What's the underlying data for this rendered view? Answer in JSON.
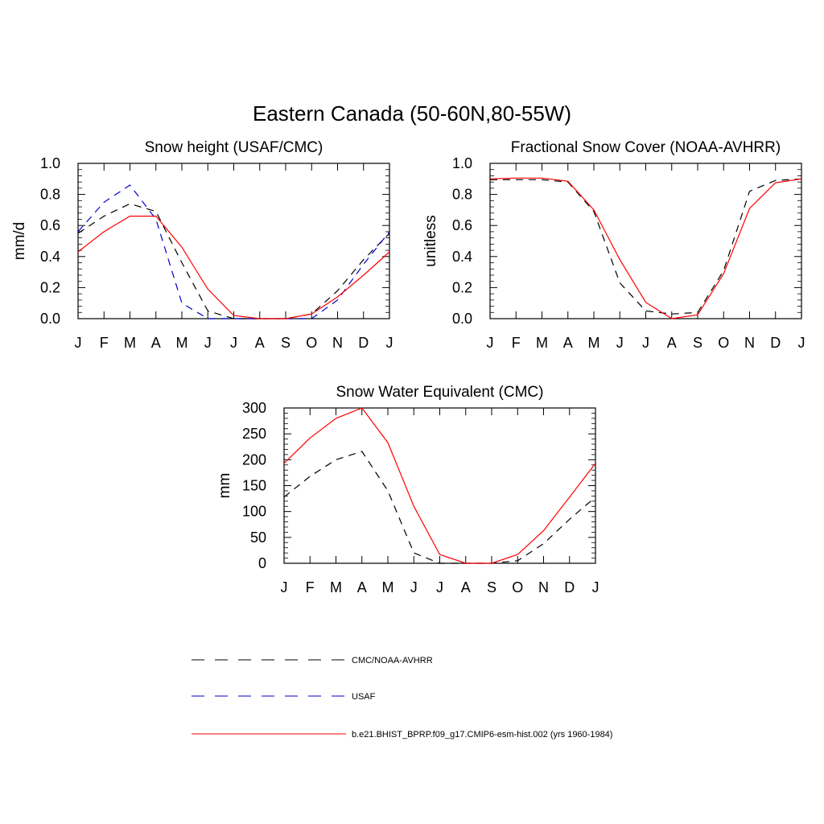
{
  "title": "Eastern Canada (50-60N,80-55W)",
  "colors": {
    "obs": "#000000",
    "usaf": "#0000cc",
    "model": "#ff0000"
  },
  "legend": [
    {
      "label": "CMC/NOAA-AVHRR",
      "color": "#000000",
      "dash": true
    },
    {
      "label": "USAF",
      "color": "#0000cc",
      "dash": true
    },
    {
      "label": "b.e21.BHIST_BPRP.f09_g17.CMIP6-esm-hist.002 (yrs 1960-1984)",
      "color": "#ff0000",
      "dash": false
    }
  ],
  "chart_data": [
    {
      "type": "line",
      "title": "Snow height (USAF/CMC)",
      "ylabel": "mm/d",
      "categories": [
        "J",
        "F",
        "M",
        "A",
        "M",
        "J",
        "J",
        "A",
        "S",
        "O",
        "N",
        "D",
        "J"
      ],
      "ylim": [
        0,
        1.0
      ],
      "yticks": [
        "0.0",
        "0.2",
        "0.4",
        "0.6",
        "0.8",
        "1.0"
      ],
      "series": [
        {
          "name": "CMC/NOAA-AVHRR",
          "color": "#000000",
          "dash": true,
          "values": [
            0.55,
            0.66,
            0.74,
            0.69,
            0.36,
            0.05,
            0.0,
            0.0,
            0.0,
            0.03,
            0.18,
            0.38,
            0.55
          ]
        },
        {
          "name": "USAF",
          "color": "#0000cc",
          "dash": true,
          "values": [
            0.56,
            0.75,
            0.86,
            0.64,
            0.1,
            0.0,
            0.0,
            0.0,
            0.0,
            0.0,
            0.12,
            0.35,
            0.56
          ]
        },
        {
          "name": "b.e21.BHIST_BPRP.f09_g17.CMIP6-esm-hist.002 (yrs 1960-1984)",
          "color": "#ff0000",
          "dash": false,
          "values": [
            0.43,
            0.56,
            0.66,
            0.66,
            0.46,
            0.19,
            0.02,
            0.0,
            0.0,
            0.03,
            0.14,
            0.28,
            0.43
          ]
        }
      ]
    },
    {
      "type": "line",
      "title": "Fractional Snow Cover (NOAA-AVHRR)",
      "ylabel": "unitless",
      "categories": [
        "J",
        "F",
        "M",
        "A",
        "M",
        "J",
        "J",
        "A",
        "S",
        "O",
        "N",
        "D",
        "J"
      ],
      "ylim": [
        0,
        1.0
      ],
      "yticks": [
        "0.0",
        "0.2",
        "0.4",
        "0.6",
        "0.8",
        "1.0"
      ],
      "series": [
        {
          "name": "CMC/NOAA-AVHRR",
          "color": "#000000",
          "dash": true,
          "values": [
            0.895,
            0.895,
            0.895,
            0.88,
            0.69,
            0.23,
            0.05,
            0.03,
            0.04,
            0.31,
            0.82,
            0.89,
            0.9
          ]
        },
        {
          "name": "b.e21.BHIST_BPRP.f09_g17.CMIP6-esm-hist.002 (yrs 1960-1984)",
          "color": "#ff0000",
          "dash": false,
          "values": [
            0.9,
            0.905,
            0.905,
            0.885,
            0.7,
            0.38,
            0.105,
            0.0,
            0.025,
            0.29,
            0.71,
            0.875,
            0.9
          ]
        }
      ]
    },
    {
      "type": "line",
      "title": "Snow Water Equivalent (CMC)",
      "ylabel": "mm",
      "categories": [
        "J",
        "F",
        "M",
        "A",
        "M",
        "J",
        "J",
        "A",
        "S",
        "O",
        "N",
        "D",
        "J"
      ],
      "ylim": [
        0,
        300
      ],
      "yticks": [
        "0",
        "50",
        "100",
        "150",
        "200",
        "250",
        "300"
      ],
      "series": [
        {
          "name": "CMC/NOAA-AVHRR",
          "color": "#000000",
          "dash": true,
          "values": [
            128,
            168,
            200,
            216,
            140,
            20,
            0,
            0,
            0,
            5,
            38,
            85,
            128
          ]
        },
        {
          "name": "b.e21.BHIST_BPRP.f09_g17.CMIP6-esm-hist.002 (yrs 1960-1984)",
          "color": "#ff0000",
          "dash": false,
          "values": [
            193,
            242,
            280,
            300,
            233,
            110,
            17,
            0,
            0,
            17,
            63,
            128,
            193
          ]
        }
      ]
    }
  ]
}
